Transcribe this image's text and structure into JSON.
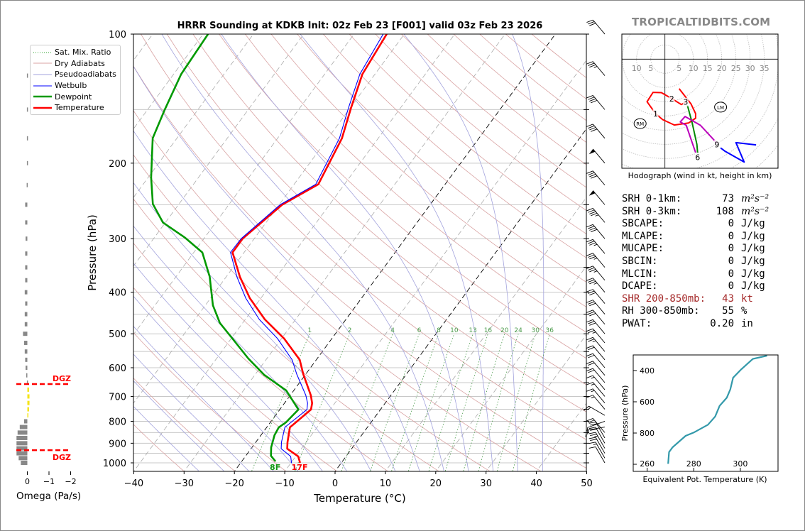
{
  "header": {
    "title": "HRRR Sounding at KDKB Init: 02z Feb 23 [F001] valid 03z Feb 23 2026",
    "watermark": "TROPICALTIDBITS.COM"
  },
  "legend": [
    {
      "label": "Sat. Mix. Ratio",
      "color": "#2ca02c",
      "style": "dotted"
    },
    {
      "label": "Dry Adiabats",
      "color": "#d9a3a3",
      "style": "solid"
    },
    {
      "label": "Pseudoadiabats",
      "color": "#a3a3dd",
      "style": "solid"
    },
    {
      "label": "Wetbulb",
      "color": "#0000ff",
      "style": "solid"
    },
    {
      "label": "Dewpoint",
      "color": "#009900",
      "style": "thick"
    },
    {
      "label": "Temperature",
      "color": "#ff0000",
      "style": "thick"
    }
  ],
  "stats": [
    {
      "label": "SRH 0-1km:",
      "value": "73",
      "unit": "m²s⁻²",
      "color": "#000000",
      "math": true
    },
    {
      "label": "SRH 0-3km:",
      "value": "108",
      "unit": "m²s⁻²",
      "color": "#000000",
      "math": true
    },
    {
      "label": "SBCAPE:",
      "value": "0",
      "unit": "J/kg",
      "color": "#000000"
    },
    {
      "label": "MLCAPE:",
      "value": "0",
      "unit": "J/kg",
      "color": "#000000"
    },
    {
      "label": "MUCAPE:",
      "value": "0",
      "unit": "J/kg",
      "color": "#000000"
    },
    {
      "label": "SBCIN:",
      "value": "0",
      "unit": "J/kg",
      "color": "#000000"
    },
    {
      "label": "MLCIN:",
      "value": "0",
      "unit": "J/kg",
      "color": "#000000"
    },
    {
      "label": "DCAPE:",
      "value": "0",
      "unit": "J/kg",
      "color": "#000000"
    },
    {
      "label": "SHR 200-850mb:",
      "value": "43",
      "unit": "kt",
      "color": "#a52a2a"
    },
    {
      "label": "RH 300-850mb:",
      "value": "55",
      "unit": "%",
      "color": "#000000"
    },
    {
      "label": "PWAT:",
      "value": "0.20",
      "unit": "in",
      "color": "#000000"
    }
  ],
  "chart_data": [
    {
      "type": "line",
      "name": "skew-t",
      "title": "HRRR Sounding at KDKB Init: 02z Feb 23 [F001] valid 03z Feb 23 2026",
      "xlabel": "Temperature (°C)",
      "ylabel": "Pressure (hPa)",
      "xlim": [
        -40,
        50
      ],
      "ylim": [
        1047,
        100
      ],
      "xticks": [
        "−40",
        "−30",
        "−20",
        "−10",
        "0",
        "10",
        "20",
        "30",
        "40",
        "50"
      ],
      "xtick_values": [
        -40,
        -30,
        -20,
        -10,
        0,
        10,
        20,
        30,
        40,
        50
      ],
      "yticks": [
        "100",
        "200",
        "300",
        "400",
        "500",
        "600",
        "700",
        "800",
        "900",
        "1000"
      ],
      "ytick_values": [
        100,
        200,
        300,
        400,
        500,
        600,
        700,
        800,
        900,
        1000
      ],
      "grid": true,
      "highlighted_isotherms": [
        0,
        -20
      ],
      "mixing_ratio_labels": [
        "1",
        "2",
        "4",
        "6",
        "8",
        "10",
        "13",
        "16",
        "20",
        "24",
        "30",
        "36"
      ],
      "mixing_ratio_values": [
        1,
        2,
        4,
        6,
        8,
        10,
        13,
        16,
        20,
        24,
        30,
        36
      ],
      "series": [
        {
          "name": "Temperature",
          "color": "#ff0000",
          "p": [
            1000,
            966,
            927,
            895,
            826,
            817,
            751,
            726,
            696,
            621,
            575,
            513,
            463,
            413,
            368,
            323,
            300,
            250,
            224,
            175,
            149,
            124,
            100
          ],
          "t": [
            -8.2,
            -9.5,
            -12.8,
            -13.7,
            -15.4,
            -15.2,
            -13.8,
            -14.5,
            -15.9,
            -20.5,
            -23.3,
            -29.5,
            -36.1,
            -42.2,
            -47.3,
            -52.3,
            -52.3,
            -49.4,
            -45.2,
            -47.2,
            -49.8,
            -52.5,
            -53.5
          ]
        },
        {
          "name": "Wetbulb",
          "color": "#0000ff",
          "p": [
            1000,
            966,
            927,
            895,
            826,
            817,
            751,
            726,
            696,
            621,
            575,
            513,
            463,
            413,
            368,
            323,
            300,
            250,
            224,
            175,
            149,
            124,
            100
          ],
          "t": [
            -9.9,
            -11.0,
            -14.0,
            -14.9,
            -16.4,
            -16.2,
            -14.6,
            -15.4,
            -16.9,
            -21.8,
            -24.8,
            -30.8,
            -37.2,
            -43.0,
            -47.9,
            -52.7,
            -52.6,
            -49.8,
            -45.7,
            -47.7,
            -50.3,
            -53.0,
            -54.2
          ]
        },
        {
          "name": "Dewpoint",
          "color": "#009900",
          "p": [
            992,
            963,
            920,
            862,
            826,
            805,
            751,
            678,
            623,
            571,
            519,
            472,
            429,
            368,
            323,
            298,
            275,
            249,
            216,
            175,
            150,
            124,
            100
          ],
          "t": [
            -13.3,
            -15.0,
            -16.2,
            -17.3,
            -17.6,
            -16.9,
            -16.3,
            -21.5,
            -28.2,
            -33.7,
            -39.1,
            -44.5,
            -48.5,
            -53.3,
            -58.3,
            -64.0,
            -70.5,
            -75.2,
            -79.4,
            -84.8,
            -86.6,
            -88.5,
            -89.0
          ]
        }
      ],
      "surface_labels": {
        "dewpoint": "8F",
        "temperature": "17F"
      },
      "wind_barbs": {
        "p": [
          100,
          125,
          150,
          175,
          200,
          225,
          250,
          275,
          300,
          325,
          350,
          375,
          400,
          425,
          450,
          475,
          500,
          525,
          550,
          575,
          600,
          625,
          650,
          675,
          700,
          725,
          750,
          775,
          800,
          825,
          850,
          875,
          900,
          925,
          950,
          975,
          1000
        ],
        "direction_deg": [
          320,
          320,
          320,
          320,
          320,
          320,
          320,
          320,
          320,
          320,
          320,
          320,
          320,
          320,
          320,
          320,
          320,
          320,
          320,
          320,
          320,
          320,
          320,
          320,
          320,
          320,
          320,
          300,
          250,
          260,
          320,
          330,
          330,
          330,
          330,
          330,
          330
        ],
        "speed_kt": [
          30,
          35,
          40,
          40,
          50,
          40,
          50,
          45,
          40,
          35,
          35,
          35,
          35,
          30,
          30,
          30,
          30,
          25,
          25,
          20,
          20,
          20,
          20,
          15,
          15,
          15,
          15,
          15,
          10,
          15,
          20,
          20,
          20,
          25,
          20,
          15,
          10
        ]
      }
    },
    {
      "type": "line",
      "name": "hodograph",
      "caption": "Hodograph (wind in kt, height in km)",
      "ring_labels": [
        "10",
        "5",
        "5",
        "10",
        "15",
        "20",
        "25",
        "30",
        "35"
      ],
      "ring_label_values": [
        -10,
        -5,
        5,
        10,
        15,
        20,
        25,
        30,
        35
      ],
      "segments": [
        {
          "name": "0-3km",
          "color": "#ff0000",
          "points": [
            [
              5.0,
              -10.4
            ],
            [
              9.2,
              -15.8
            ],
            [
              10.8,
              -19.2
            ],
            [
              10.8,
              -20.8
            ],
            [
              8.3,
              -22.5
            ],
            [
              3.3,
              -23.2
            ],
            [
              -0.8,
              -21.3
            ],
            [
              -3.3,
              -19.2
            ],
            [
              -6.3,
              -15.0
            ],
            [
              -4.2,
              -11.7
            ],
            [
              -1.25,
              -11.8
            ],
            [
              2.4,
              -13.9
            ],
            [
              5.8,
              -16.0
            ],
            [
              7.3,
              -15.1
            ]
          ]
        },
        {
          "name": "3-6km",
          "color": "#008800",
          "points": [
            [
              7.9,
              -16.25
            ],
            [
              9.6,
              -22.5
            ],
            [
              11.25,
              -30.0
            ],
            [
              11.5,
              -32.9
            ]
          ]
        },
        {
          "name": "6-9km",
          "color": "#bb00bb",
          "points": [
            [
              10.8,
              -32.9
            ],
            [
              7.5,
              -23.3
            ],
            [
              5.4,
              -22.1
            ],
            [
              7.1,
              -20.2
            ],
            [
              12.5,
              -23.3
            ],
            [
              18.3,
              -29.6
            ]
          ]
        },
        {
          "name": "9+km",
          "color": "#0000ff",
          "points": [
            [
              19.6,
              -31.25
            ],
            [
              21.25,
              -32.5
            ],
            [
              27.9,
              -36.25
            ],
            [
              25.0,
              -29.4
            ],
            [
              32.1,
              -30.2
            ]
          ]
        }
      ],
      "height_labels": [
        {
          "text": "1",
          "u": -3.3,
          "v": -19.2
        },
        {
          "text": "2",
          "u": 2.4,
          "v": -13.9
        },
        {
          "text": "3",
          "u": 7.3,
          "v": -15.1
        },
        {
          "text": "6",
          "u": 11.5,
          "v": -34.6
        },
        {
          "text": "9",
          "u": 18.3,
          "v": -30.0
        }
      ],
      "storm_motion": [
        {
          "text": "RM",
          "u": -8.75,
          "v": -22.7
        },
        {
          "text": "LM",
          "u": 19.6,
          "v": -16.9
        }
      ]
    },
    {
      "type": "line",
      "name": "theta-e-profile",
      "xlabel": "Equivalent Pot. Temperature (K)",
      "ylabel": "Pressure (hPa)",
      "xticks": [
        "260",
        "280",
        "300"
      ],
      "xtick_values": [
        260,
        280,
        300
      ],
      "yticks": [
        "400",
        "600",
        "800"
      ],
      "ytick_values": [
        400,
        600,
        800
      ],
      "xlim": [
        254,
        316
      ],
      "ylim": [
        1045,
        309
      ],
      "series": {
        "color": "#3399aa",
        "p": [
          997,
          922,
          891,
          818,
          797,
          747,
          694,
          626,
          573,
          520,
          446,
          393,
          325,
          305
        ],
        "theta_e": [
          269.0,
          269.4,
          270.9,
          276.5,
          280.0,
          286.1,
          289.2,
          291.1,
          294.2,
          295.7,
          296.9,
          300.3,
          305.4,
          311.5
        ]
      }
    },
    {
      "type": "bar",
      "name": "omega-profile",
      "xlabel": "Omega (Pa/s)",
      "xticks": [
        "0",
        "−1",
        "−2"
      ],
      "xtick_values": [
        0,
        -1,
        -2
      ],
      "levels_hpa": [
        125,
        150,
        175,
        200,
        225,
        250,
        275,
        300,
        325,
        350,
        375,
        400,
        425,
        450,
        475,
        500,
        525,
        550,
        575,
        600,
        625,
        650,
        675,
        700,
        725,
        750,
        775,
        800,
        825,
        850,
        875,
        900,
        925,
        950,
        975,
        1000
      ],
      "omega": [
        0.02,
        0.02,
        0.02,
        0.02,
        0.03,
        0.1,
        0.1,
        0.08,
        0.1,
        0.1,
        0.1,
        0.12,
        0.1,
        0.12,
        0.12,
        0.2,
        0.15,
        0.12,
        0.1,
        0.08,
        0.05,
        0.02,
        -0.08,
        -0.1,
        -0.1,
        -0.08,
        -0.02,
        0.15,
        0.35,
        0.45,
        0.5,
        0.5,
        0.5,
        0.5,
        0.4,
        0.3
      ],
      "bar_color": "#888888",
      "dgz_color": "#f5e41a",
      "dgz": {
        "label": "DGZ",
        "top_hpa": 655,
        "bottom_hpa": 934,
        "color": "#ff0000"
      }
    }
  ]
}
